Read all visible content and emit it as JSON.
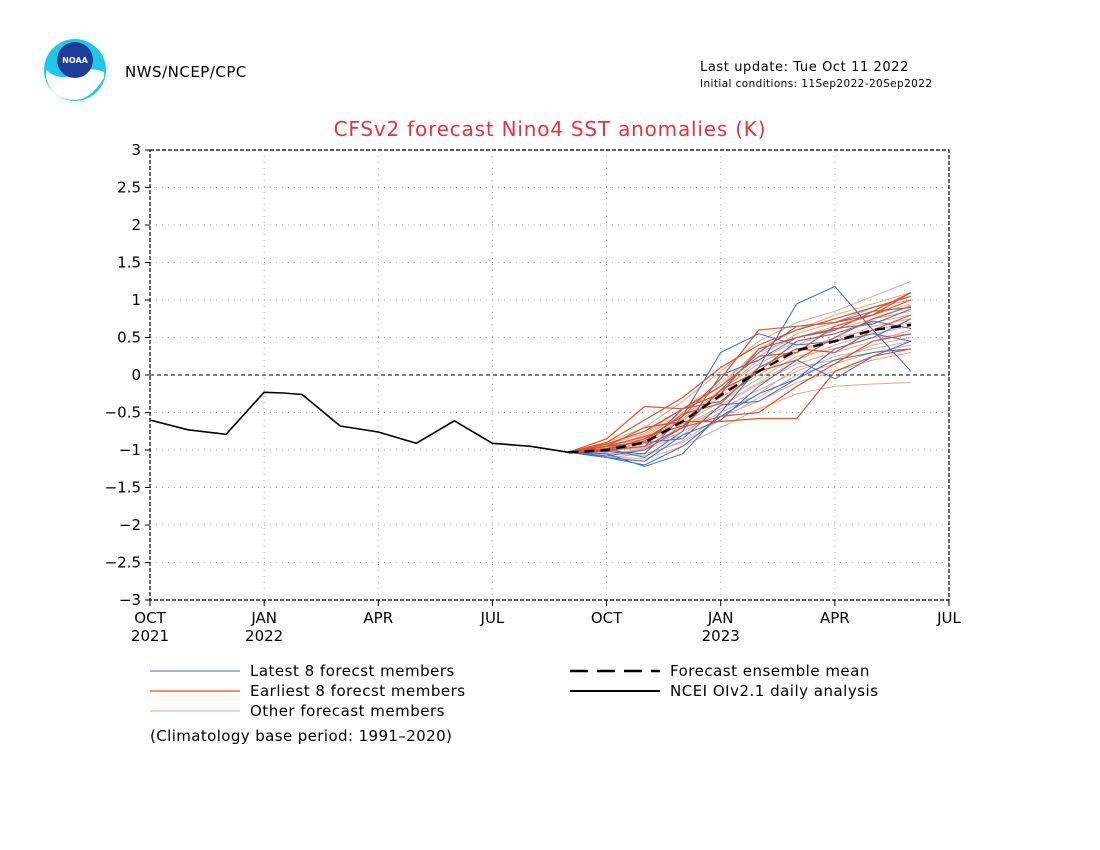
{
  "header": {
    "org": "NWS/NCEP/CPC",
    "logo_text": "NOAA",
    "last_update": "Last update: Tue Oct 11 2022",
    "initial_conditions": "Initial conditions: 11Sep2022-20Sep2022"
  },
  "footnote": "(Climatology base period: 1991–2020)",
  "colors": {
    "title": "#e8323c",
    "latest": "#3a6fc8",
    "earliest": "#e8501e",
    "other": "#e0a898",
    "mean": "#000000",
    "analysis": "#000000",
    "grid": "#aaaaaa",
    "logo_ring": "#1ec8e6",
    "logo_center": "#1e3c9a"
  },
  "chart_data": {
    "type": "line",
    "title": "CFSv2 forecast Nino4 SST anomalies (K)",
    "ylim": [
      -3,
      3
    ],
    "yticks": [
      3,
      2.5,
      2,
      1.5,
      1,
      0.5,
      0,
      -0.5,
      -1,
      -1.5,
      -2,
      -2.5,
      -3
    ],
    "ytick_labels": [
      "3",
      "2.5",
      "2",
      "1.5",
      "1",
      "0.5",
      "0",
      "−0.5",
      "−1",
      "−1.5",
      "−2",
      "−2.5",
      "−3"
    ],
    "xlim": [
      0,
      21
    ],
    "xticks": [
      {
        "pos": 0,
        "label": "OCT",
        "year": "2021"
      },
      {
        "pos": 3,
        "label": "JAN",
        "year": "2022"
      },
      {
        "pos": 6,
        "label": "APR",
        "year": ""
      },
      {
        "pos": 9,
        "label": "JUL",
        "year": ""
      },
      {
        "pos": 12,
        "label": "OCT",
        "year": ""
      },
      {
        "pos": 15,
        "label": "JAN",
        "year": "2023"
      },
      {
        "pos": 18,
        "label": "APR",
        "year": ""
      },
      {
        "pos": 21,
        "label": "JUL",
        "year": ""
      }
    ],
    "grid": true,
    "zero_line": true,
    "legend": [
      {
        "label": "Latest 8 forecst members",
        "style": "latest"
      },
      {
        "label": "Earliest 8 forecst members",
        "style": "earliest"
      },
      {
        "label": "Other forecast members",
        "style": "other"
      },
      {
        "label": "Forecast ensemble mean",
        "style": "mean"
      },
      {
        "label": "NCEI OIv2.1 daily analysis",
        "style": "analysis"
      }
    ],
    "observed": {
      "x": [
        0,
        1,
        2,
        3,
        3.5,
        4,
        5,
        6,
        7,
        8,
        9,
        10,
        11
      ],
      "y": [
        -0.6,
        -0.73,
        -0.79,
        -0.23,
        -0.24,
        -0.26,
        -0.68,
        -0.76,
        -0.91,
        -0.61,
        -0.91,
        -0.95,
        -1.03
      ]
    },
    "ensemble_mean": {
      "x": [
        11,
        12,
        13,
        14,
        15,
        16,
        17,
        18,
        19,
        20
      ],
      "y": [
        -1.03,
        -1.0,
        -0.9,
        -0.62,
        -0.27,
        0.05,
        0.33,
        0.45,
        0.6,
        0.67
      ]
    },
    "latest_members": [
      {
        "x": [
          11,
          12,
          13,
          14,
          15,
          16,
          17,
          18,
          19,
          20
        ],
        "y": [
          -1.03,
          -1.05,
          -1.22,
          -1.05,
          -0.5,
          0.1,
          0.95,
          1.18,
          0.6,
          0.05
        ]
      },
      {
        "x": [
          11,
          12,
          13,
          14,
          15,
          16,
          17,
          18,
          19,
          20
        ],
        "y": [
          -1.03,
          -1.08,
          -1.0,
          -0.7,
          -0.2,
          0.3,
          0.65,
          0.7,
          0.85,
          0.9
        ]
      },
      {
        "x": [
          11,
          12,
          13,
          14,
          15,
          16,
          17,
          18,
          19,
          20
        ],
        "y": [
          -1.03,
          -1.1,
          -1.2,
          -0.95,
          -0.55,
          -0.25,
          -0.05,
          0.35,
          0.5,
          0.75
        ]
      },
      {
        "x": [
          11,
          12,
          13,
          14,
          15,
          16,
          17,
          18,
          19,
          20
        ],
        "y": [
          -1.03,
          -1.02,
          -1.05,
          -0.55,
          0.3,
          0.55,
          0.4,
          0.45,
          0.55,
          0.45
        ]
      },
      {
        "x": [
          11,
          12,
          13,
          14,
          15,
          16,
          17,
          18,
          19,
          20
        ],
        "y": [
          -1.03,
          -0.95,
          -0.9,
          -0.85,
          -0.4,
          -0.35,
          -0.05,
          0.2,
          0.3,
          0.35
        ]
      },
      {
        "x": [
          11,
          12,
          13,
          14,
          15,
          16,
          17,
          18,
          19,
          20
        ],
        "y": [
          -1.03,
          -0.98,
          -1.1,
          -0.75,
          0.0,
          0.2,
          0.5,
          0.62,
          0.68,
          0.88
        ]
      },
      {
        "x": [
          11,
          12,
          13,
          14,
          15,
          16,
          17,
          18,
          19,
          20
        ],
        "y": [
          -1.03,
          -1.0,
          -0.95,
          -0.45,
          -0.35,
          0.05,
          0.45,
          0.55,
          0.72,
          0.62
        ]
      },
      {
        "x": [
          11,
          12,
          13,
          14,
          15,
          16,
          17,
          18,
          19,
          20
        ],
        "y": [
          -1.03,
          -1.1,
          -1.15,
          -0.8,
          -0.6,
          -0.15,
          0.2,
          -0.05,
          0.25,
          0.45
        ]
      }
    ],
    "earliest_members": [
      {
        "x": [
          11,
          12,
          13,
          14,
          15,
          16,
          17,
          18,
          19,
          20
        ],
        "y": [
          -1.03,
          -0.85,
          -0.42,
          -0.45,
          -0.25,
          0.35,
          0.5,
          0.6,
          0.85,
          1.1
        ]
      },
      {
        "x": [
          11,
          12,
          13,
          14,
          15,
          16,
          17,
          18,
          19,
          20
        ],
        "y": [
          -1.03,
          -1.0,
          -0.85,
          -0.55,
          -0.05,
          0.6,
          0.65,
          0.7,
          0.8,
          1.1
        ]
      },
      {
        "x": [
          11,
          12,
          13,
          14,
          15,
          16,
          17,
          18,
          19,
          20
        ],
        "y": [
          -1.03,
          -0.95,
          -0.7,
          -0.62,
          -0.62,
          -0.58,
          -0.58,
          0.05,
          0.25,
          0.35
        ]
      },
      {
        "x": [
          11,
          12,
          13,
          14,
          15,
          16,
          17,
          18,
          19,
          20
        ],
        "y": [
          -1.03,
          -0.9,
          -0.6,
          -0.3,
          0.1,
          0.4,
          0.6,
          0.75,
          0.9,
          1.05
        ]
      },
      {
        "x": [
          11,
          12,
          13,
          14,
          15,
          16,
          17,
          18,
          19,
          20
        ],
        "y": [
          -1.03,
          -1.0,
          -0.95,
          -0.7,
          -0.55,
          -0.5,
          -0.15,
          0.15,
          0.45,
          0.55
        ]
      },
      {
        "x": [
          11,
          12,
          13,
          14,
          15,
          16,
          17,
          18,
          19,
          20
        ],
        "y": [
          -1.03,
          -0.92,
          -0.75,
          -0.45,
          -0.15,
          0.25,
          0.3,
          0.65,
          0.8,
          1.0
        ]
      },
      {
        "x": [
          11,
          12,
          13,
          14,
          15,
          16,
          17,
          18,
          19,
          20
        ],
        "y": [
          -1.03,
          -0.98,
          -0.88,
          -0.52,
          -0.38,
          0.1,
          0.35,
          0.3,
          0.6,
          0.8
        ]
      },
      {
        "x": [
          11,
          12,
          13,
          14,
          15,
          16,
          17,
          18,
          19,
          20
        ],
        "y": [
          -1.03,
          -0.95,
          -0.82,
          -0.68,
          -0.2,
          0.05,
          0.2,
          0.5,
          0.75,
          0.92
        ]
      }
    ],
    "other_members": [
      {
        "x": [
          11,
          12,
          13,
          14,
          15,
          16,
          17,
          18,
          19,
          20
        ],
        "y": [
          -1.03,
          -1.0,
          -0.9,
          -0.6,
          -0.3,
          0.0,
          0.3,
          0.5,
          0.6,
          0.7
        ]
      },
      {
        "x": [
          11,
          12,
          13,
          14,
          15,
          16,
          17,
          18,
          19,
          20
        ],
        "y": [
          -1.03,
          -1.05,
          -1.0,
          -0.8,
          -0.4,
          -0.1,
          0.2,
          0.4,
          0.55,
          0.65
        ]
      },
      {
        "x": [
          11,
          12,
          13,
          14,
          15,
          16,
          17,
          18,
          19,
          20
        ],
        "y": [
          -1.03,
          -0.95,
          -0.85,
          -0.55,
          -0.2,
          0.15,
          0.4,
          0.6,
          0.75,
          0.85
        ]
      },
      {
        "x": [
          11,
          12,
          13,
          14,
          15,
          16,
          17,
          18,
          19,
          20
        ],
        "y": [
          -1.03,
          -1.1,
          -1.05,
          -0.9,
          -0.6,
          -0.3,
          0.0,
          0.15,
          0.3,
          0.4
        ]
      },
      {
        "x": [
          11,
          12,
          13,
          14,
          15,
          16,
          17,
          18,
          19,
          20
        ],
        "y": [
          -1.03,
          -0.98,
          -0.8,
          -0.5,
          -0.15,
          0.25,
          0.55,
          0.7,
          0.9,
          1.0
        ]
      },
      {
        "x": [
          11,
          12,
          13,
          14,
          15,
          16,
          17,
          18,
          19,
          20
        ],
        "y": [
          -1.03,
          -1.02,
          -0.95,
          -0.7,
          -0.45,
          -0.2,
          0.05,
          0.25,
          0.35,
          0.45
        ]
      },
      {
        "x": [
          11,
          12,
          13,
          14,
          15,
          16,
          17,
          18,
          19,
          20
        ],
        "y": [
          -1.03,
          -0.9,
          -0.7,
          -0.35,
          0.05,
          0.45,
          0.7,
          0.85,
          1.05,
          1.25
        ]
      },
      {
        "x": [
          11,
          12,
          13,
          14,
          15,
          16,
          17,
          18,
          19,
          20
        ],
        "y": [
          -1.03,
          -1.08,
          -1.12,
          -0.95,
          -0.7,
          -0.45,
          -0.25,
          -0.15,
          -0.12,
          -0.1
        ]
      },
      {
        "x": [
          11,
          12,
          13,
          14,
          15,
          16,
          17,
          18,
          19,
          20
        ],
        "y": [
          -1.03,
          -0.96,
          -0.88,
          -0.6,
          -0.25,
          0.1,
          0.35,
          0.45,
          0.65,
          0.75
        ]
      },
      {
        "x": [
          11,
          12,
          13,
          14,
          15,
          16,
          17,
          18,
          19,
          20
        ],
        "y": [
          -1.03,
          -1.0,
          -0.92,
          -0.65,
          -0.35,
          -0.05,
          0.25,
          0.35,
          0.5,
          0.55
        ]
      },
      {
        "x": [
          11,
          12,
          13,
          14,
          15,
          16,
          17,
          18,
          19,
          20
        ],
        "y": [
          -1.03,
          -0.93,
          -0.78,
          -0.45,
          -0.1,
          0.3,
          0.5,
          0.65,
          0.8,
          0.95
        ]
      },
      {
        "x": [
          11,
          12,
          13,
          14,
          15,
          16,
          17,
          18,
          19,
          20
        ],
        "y": [
          -1.03,
          -1.06,
          -0.98,
          -0.75,
          -0.5,
          -0.25,
          0.1,
          0.2,
          0.4,
          0.5
        ]
      },
      {
        "x": [
          11,
          12,
          13,
          14,
          15,
          16,
          17,
          18,
          19,
          20
        ],
        "y": [
          -1.03,
          -0.99,
          -0.87,
          -0.58,
          -0.22,
          0.2,
          0.45,
          0.55,
          0.7,
          0.8
        ]
      },
      {
        "x": [
          11,
          12,
          13,
          14,
          15,
          16,
          17,
          18,
          19,
          20
        ],
        "y": [
          -1.03,
          -1.04,
          -1.08,
          -0.88,
          -0.55,
          -0.35,
          -0.1,
          0.05,
          0.2,
          0.3
        ]
      },
      {
        "x": [
          11,
          12,
          13,
          14,
          15,
          16,
          17,
          18,
          19,
          20
        ],
        "y": [
          -1.03,
          -0.94,
          -0.83,
          -0.5,
          -0.15,
          0.35,
          0.6,
          0.8,
          0.95,
          1.1
        ]
      },
      {
        "x": [
          11,
          12,
          13,
          14,
          15,
          16,
          17,
          18,
          19,
          20
        ],
        "y": [
          -1.03,
          -1.01,
          -0.97,
          -0.68,
          -0.42,
          -0.12,
          0.15,
          0.3,
          0.45,
          0.6
        ]
      }
    ]
  }
}
